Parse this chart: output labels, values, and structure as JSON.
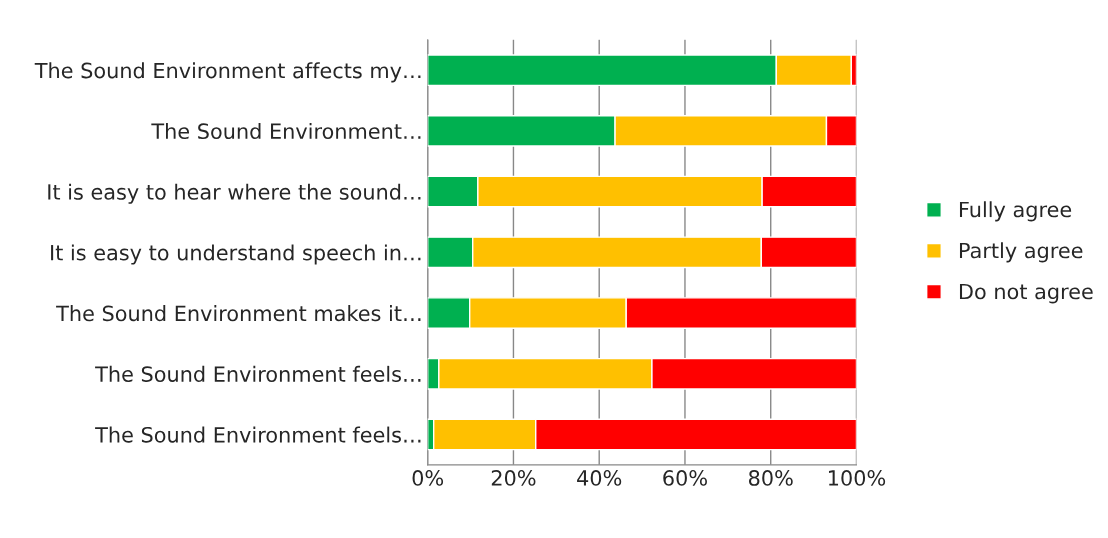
{
  "chart_data": {
    "type": "bar",
    "orientation": "horizontal",
    "stacked": true,
    "categories": [
      "The Sound Environment affects my…",
      "The Sound Environment…",
      "It is easy to hear where the sound…",
      "It is easy to understand speech in…",
      "The Sound Environment makes it…",
      "The Sound Environment feels…",
      "The Sound Environment feels…"
    ],
    "series": [
      {
        "name": "Fully agree",
        "color": "#00b050",
        "values": [
          81.3,
          43.7,
          11.7,
          10.5,
          9.8,
          2.6,
          1.4
        ]
      },
      {
        "name": "Partly agree",
        "color": "#ffc000",
        "values": [
          17.5,
          49.3,
          66.3,
          67.3,
          36.5,
          49.7,
          23.8
        ]
      },
      {
        "name": "Do not agree",
        "color": "#ff0000",
        "values": [
          1.2,
          7.0,
          22.0,
          22.2,
          53.7,
          47.7,
          74.8
        ]
      }
    ],
    "xlim": [
      0,
      100
    ],
    "xticks": [
      {
        "value": 0,
        "label": "0%"
      },
      {
        "value": 20,
        "label": "20%"
      },
      {
        "value": 40,
        "label": "40%"
      },
      {
        "value": 60,
        "label": "60%"
      },
      {
        "value": 80,
        "label": "80%"
      },
      {
        "value": 100,
        "label": "100%"
      }
    ],
    "grid": "x",
    "legend": "right"
  }
}
